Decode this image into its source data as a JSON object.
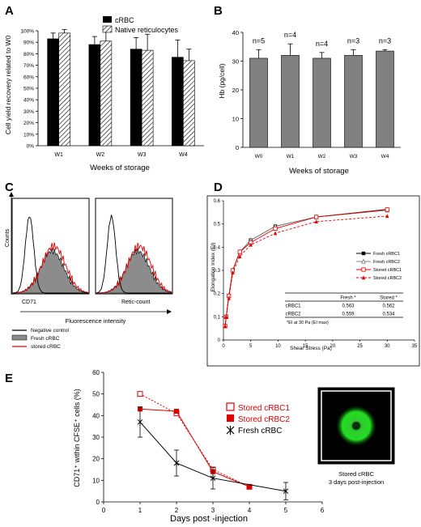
{
  "panels": {
    "A": {
      "letter": "A",
      "chart_data": {
        "type": "bar",
        "categories": [
          "W1",
          "W2",
          "W3",
          "W4"
        ],
        "series": [
          {
            "name": "cRBC",
            "values": [
              93,
              88,
              84,
              77
            ],
            "errors": [
              5,
              7,
              10,
              15
            ],
            "color": "#000000"
          },
          {
            "name": "Native reticulocytes",
            "values": [
              98,
              91,
              83,
              74
            ],
            "errors": [
              3,
              9,
              14,
              10
            ],
            "color": "#ffffff",
            "pattern": "hatch"
          }
        ],
        "xlabel": "Weeks of storage",
        "ylabel": "Cell yield recovery related to W0",
        "ylim": [
          0,
          100
        ],
        "yticks": [
          "0%",
          "10%",
          "20%",
          "30%",
          "40%",
          "50%",
          "60%",
          "70%",
          "80%",
          "90%",
          "100%"
        ],
        "legend": "top-right"
      }
    },
    "B": {
      "letter": "B",
      "chart_data": {
        "type": "bar",
        "categories": [
          "W0",
          "W1",
          "W2",
          "W3",
          "W4"
        ],
        "series": [
          {
            "name": "",
            "values": [
              31,
              32,
              31,
              32,
              33.5
            ],
            "errors": [
              3,
              4,
              2,
              2,
              0.5
            ],
            "color": "#808080"
          }
        ],
        "annotations": [
          "n=5",
          "n=4",
          "n=4",
          "n=3",
          "n=3"
        ],
        "xlabel": "Weeks of storage",
        "ylabel": "Hb (pg/cell)",
        "ylim": [
          0,
          40
        ],
        "yticks": [
          "0",
          "10",
          "20",
          "30",
          "40"
        ]
      }
    },
    "C": {
      "letter": "C",
      "chart_data": {
        "type": "area",
        "ylabel": "Counts",
        "xlabel": "Fluorescence intensity",
        "subplots": [
          "CD71",
          "Retic-count"
        ],
        "legend": [
          "Negative control",
          "Fresh cRBC",
          "stored cRBC"
        ],
        "colors": {
          "negative": "#000000",
          "fresh": "#8c8c8c",
          "stored": "#e00000"
        }
      }
    },
    "D": {
      "letter": "D",
      "chart_data": {
        "type": "line",
        "x": [
          0.3,
          0.5,
          1,
          1.7,
          3,
          5,
          9.5,
          17,
          30
        ],
        "series": [
          {
            "name": "Fresh cRBC1",
            "values": [
              0.06,
              0.1,
              0.19,
              0.3,
              0.38,
              0.43,
              0.49,
              0.53,
              0.563
            ],
            "marker": "square",
            "color": "#000000"
          },
          {
            "name": "Fresh cRBC2",
            "values": [
              0.06,
              0.1,
              0.19,
              0.3,
              0.38,
              0.43,
              0.49,
              0.53,
              0.559
            ],
            "marker": "triangle-open",
            "color": "#808080"
          },
          {
            "name": "Stored cRBC1",
            "values": [
              0.06,
              0.1,
              0.19,
              0.3,
              0.38,
              0.42,
              0.48,
              0.53,
              0.562
            ],
            "marker": "square-open",
            "color": "#e00000"
          },
          {
            "name": "Stored cRBC2",
            "values": [
              0.06,
              0.1,
              0.18,
              0.29,
              0.36,
              0.41,
              0.46,
              0.51,
              0.534
            ],
            "marker": "triangle",
            "color": "#e00000",
            "dashed": true
          }
        ],
        "xlabel": "Shear Stress (Pa)",
        "ylabel": "Elongation Index (EI)",
        "xlim": [
          0,
          35
        ],
        "ylim": [
          0,
          0.6
        ],
        "xticks": [
          "0",
          "5",
          "10",
          "15",
          "20",
          "25",
          "30",
          "35"
        ],
        "yticks": [
          "0",
          "0.1",
          "0.2",
          "0.3",
          "0.4",
          "0.5",
          "0.6"
        ],
        "legend": "right",
        "table": {
          "headers": [
            "",
            "Fresh *",
            "Stored *"
          ],
          "rows": [
            [
              "cRBC1",
              "0.563",
              "0.562"
            ],
            [
              "cRBC2",
              "0.559",
              "0.534"
            ]
          ],
          "footnote": "*EI at 30 Pa (EI max)"
        }
      }
    },
    "E": {
      "letter": "E",
      "chart_data": {
        "type": "line",
        "series": [
          {
            "name": "Stored cRBC1",
            "x": [
              1,
              2,
              3,
              4
            ],
            "values": [
              50,
              41,
              15,
              7
            ],
            "marker": "square-open",
            "color": "#e00000",
            "dashed": true
          },
          {
            "name": "Stored cRBC2",
            "x": [
              1,
              2,
              3,
              4
            ],
            "values": [
              43,
              42,
              14,
              7
            ],
            "marker": "square",
            "color": "#e00000"
          },
          {
            "name": "Fresh cRBC",
            "x": [
              1,
              2,
              3,
              5
            ],
            "values": [
              37,
              18,
              11,
              5
            ],
            "errors": [
              7,
              6,
              5,
              4
            ],
            "marker": "star",
            "color": "#000000"
          }
        ],
        "xlabel": "Days post -injection",
        "ylabel": "CD71⁺ within CFSE⁺ cells (%)",
        "xlim": [
          0,
          6
        ],
        "ylim": [
          0,
          60
        ],
        "xticks": [
          "0",
          "1",
          "2",
          "3",
          "4",
          "5",
          "6"
        ],
        "yticks": [
          "0",
          "10",
          "20",
          "30",
          "40",
          "50",
          "60"
        ],
        "legend": "right",
        "inset_caption": [
          "Stored cRBC",
          "3 days post-injection"
        ]
      }
    }
  }
}
